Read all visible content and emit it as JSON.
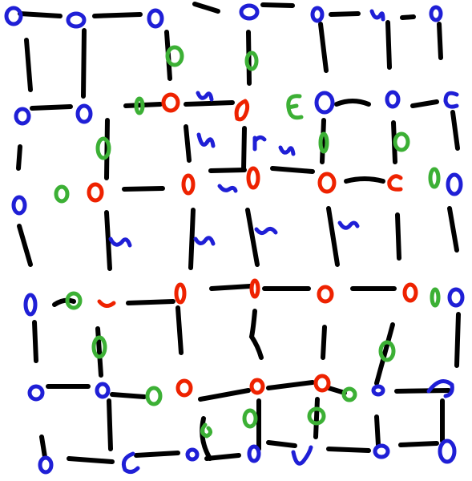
{
  "colors": {
    "background": "#ffffff",
    "edge": "#000000",
    "node_blue": "#1f1fd6",
    "node_red": "#ee2200",
    "node_green": "#3cb035"
  },
  "legend": []
}
